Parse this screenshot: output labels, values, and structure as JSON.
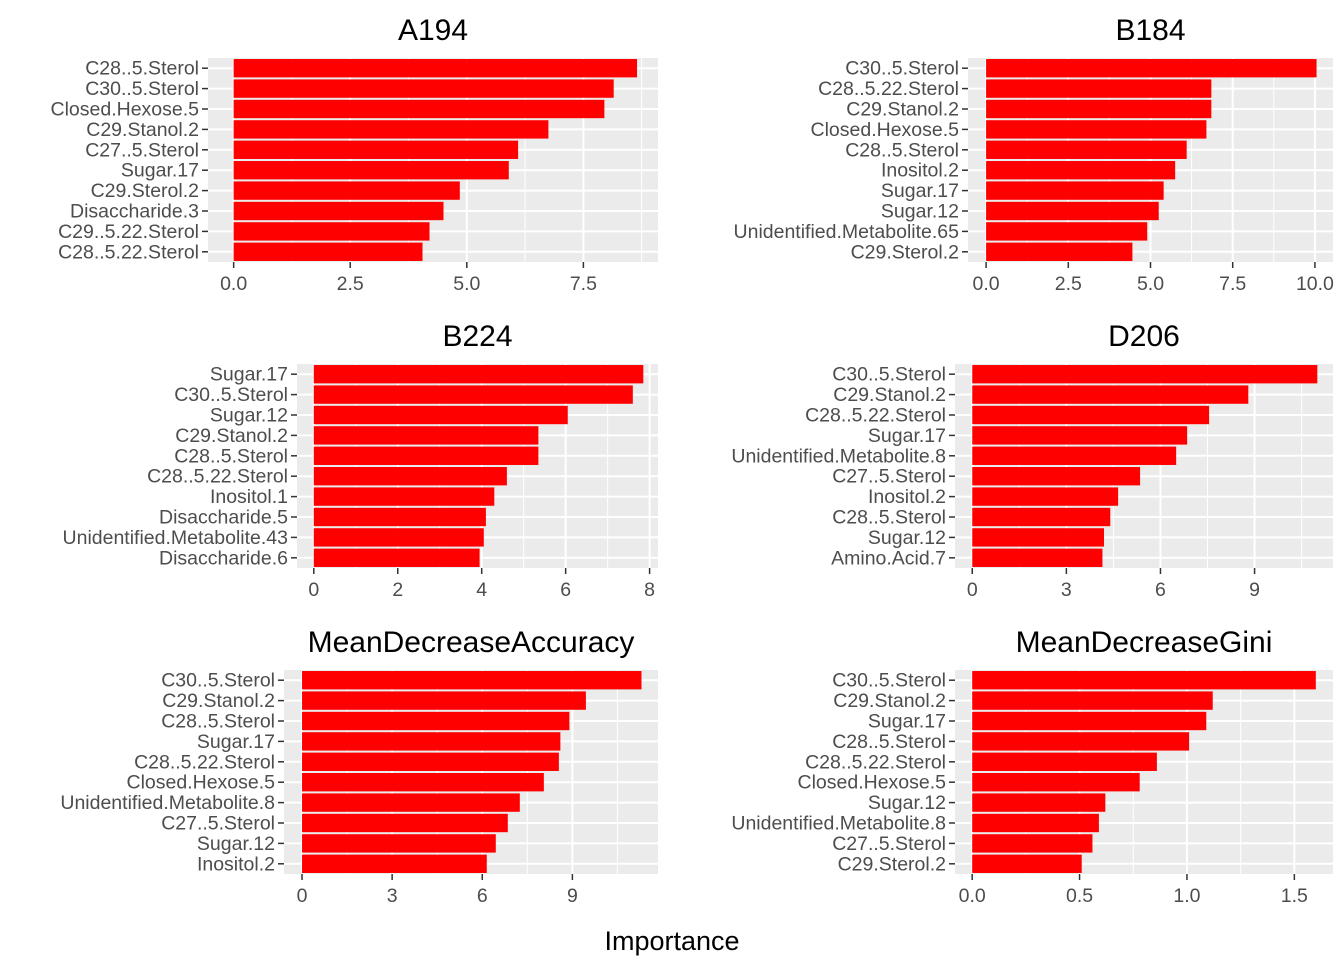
{
  "chart_data": {
    "type": "bar",
    "orientation": "horizontal",
    "xlabel": "Importance",
    "bar_color": "#ff0000",
    "panel_bg": "#ebebeb",
    "grid": true,
    "panels": [
      {
        "title": "A194",
        "categories": [
          "C28..5.Sterol",
          "C30..5.Sterol",
          "Closed.Hexose.5",
          "C29.Stanol.2",
          "C27..5.Sterol",
          "Sugar.17",
          "C29.Sterol.2",
          "Disaccharide.3",
          "C29..5.22.Sterol",
          "C28..5.22.Sterol"
        ],
        "values": [
          8.65,
          8.15,
          7.95,
          6.75,
          6.1,
          5.9,
          4.85,
          4.5,
          4.2,
          4.05
        ],
        "xlim": [
          -0.55,
          9.1
        ],
        "xticks": [
          0,
          2.5,
          5,
          7.5
        ],
        "xtick_labels": [
          "0.0",
          "2.5",
          "5.0",
          "7.5"
        ]
      },
      {
        "title": "B184",
        "categories": [
          "C30..5.Sterol",
          "C28..5.22.Sterol",
          "C29.Stanol.2",
          "Closed.Hexose.5",
          "C28..5.Sterol",
          "Inositol.2",
          "Sugar.17",
          "Sugar.12",
          "Unidentified.Metabolite.65",
          "C29.Sterol.2"
        ],
        "values": [
          10.05,
          6.85,
          6.85,
          6.7,
          6.1,
          5.75,
          5.4,
          5.25,
          4.9,
          4.45
        ],
        "xlim": [
          -0.55,
          10.55
        ],
        "xticks": [
          0,
          2.5,
          5,
          7.5,
          10
        ],
        "xtick_labels": [
          "0.0",
          "2.5",
          "5.0",
          "7.5",
          "10.0"
        ]
      },
      {
        "title": "B224",
        "categories": [
          "Sugar.17",
          "C30..5.Sterol",
          "Sugar.12",
          "C29.Stanol.2",
          "C28..5.Sterol",
          "C28..5.22.Sterol",
          "Inositol.1",
          "Disaccharide.5",
          "Unidentified.Metabolite.43",
          "Disaccharide.6"
        ],
        "values": [
          7.85,
          7.6,
          6.05,
          5.35,
          5.35,
          4.6,
          4.3,
          4.1,
          4.05,
          3.95
        ],
        "xlim": [
          -0.4,
          8.2
        ],
        "xticks": [
          0,
          2,
          4,
          6,
          8
        ],
        "xtick_labels": [
          "0",
          "2",
          "4",
          "6",
          "8"
        ]
      },
      {
        "title": "D206",
        "categories": [
          "C30..5.Sterol",
          "C29.Stanol.2",
          "C28..5.22.Sterol",
          "Sugar.17",
          "Unidentified.Metabolite.8",
          "C27..5.Sterol",
          "Inositol.2",
          "C28..5.Sterol",
          "Sugar.12",
          "Amino.Acid.7"
        ],
        "values": [
          11.0,
          8.8,
          7.55,
          6.85,
          6.5,
          5.35,
          4.65,
          4.4,
          4.2,
          4.15
        ],
        "xlim": [
          -0.55,
          11.5
        ],
        "xticks": [
          0,
          3,
          6,
          9
        ],
        "xtick_labels": [
          "0",
          "3",
          "6",
          "9"
        ]
      },
      {
        "title": "MeanDecreaseAccuracy",
        "categories": [
          "C30..5.Sterol",
          "C29.Stanol.2",
          "C28..5.Sterol",
          "Sugar.17",
          "C28..5.22.Sterol",
          "Closed.Hexose.5",
          "Unidentified.Metabolite.8",
          "C27..5.Sterol",
          "Sugar.12",
          "Inositol.2"
        ],
        "values": [
          11.3,
          9.45,
          8.9,
          8.6,
          8.55,
          8.05,
          7.25,
          6.85,
          6.45,
          6.15
        ],
        "xlim": [
          -0.6,
          11.85
        ],
        "xticks": [
          0,
          3,
          6,
          9
        ],
        "xtick_labels": [
          "0",
          "3",
          "6",
          "9"
        ]
      },
      {
        "title": "MeanDecreaseGini",
        "categories": [
          "C30..5.Sterol",
          "C29.Stanol.2",
          "Sugar.17",
          "C28..5.Sterol",
          "C28..5.22.Sterol",
          "Closed.Hexose.5",
          "Sugar.12",
          "Unidentified.Metabolite.8",
          "C27..5.Sterol",
          "C29.Sterol.2"
        ],
        "values": [
          1.6,
          1.12,
          1.09,
          1.01,
          0.86,
          0.78,
          0.62,
          0.59,
          0.56,
          0.51
        ],
        "xlim": [
          -0.08,
          1.68
        ],
        "xticks": [
          0,
          0.5,
          1.0,
          1.5
        ],
        "xtick_labels": [
          "0.0",
          "0.5",
          "1.0",
          "1.5"
        ]
      }
    ]
  }
}
